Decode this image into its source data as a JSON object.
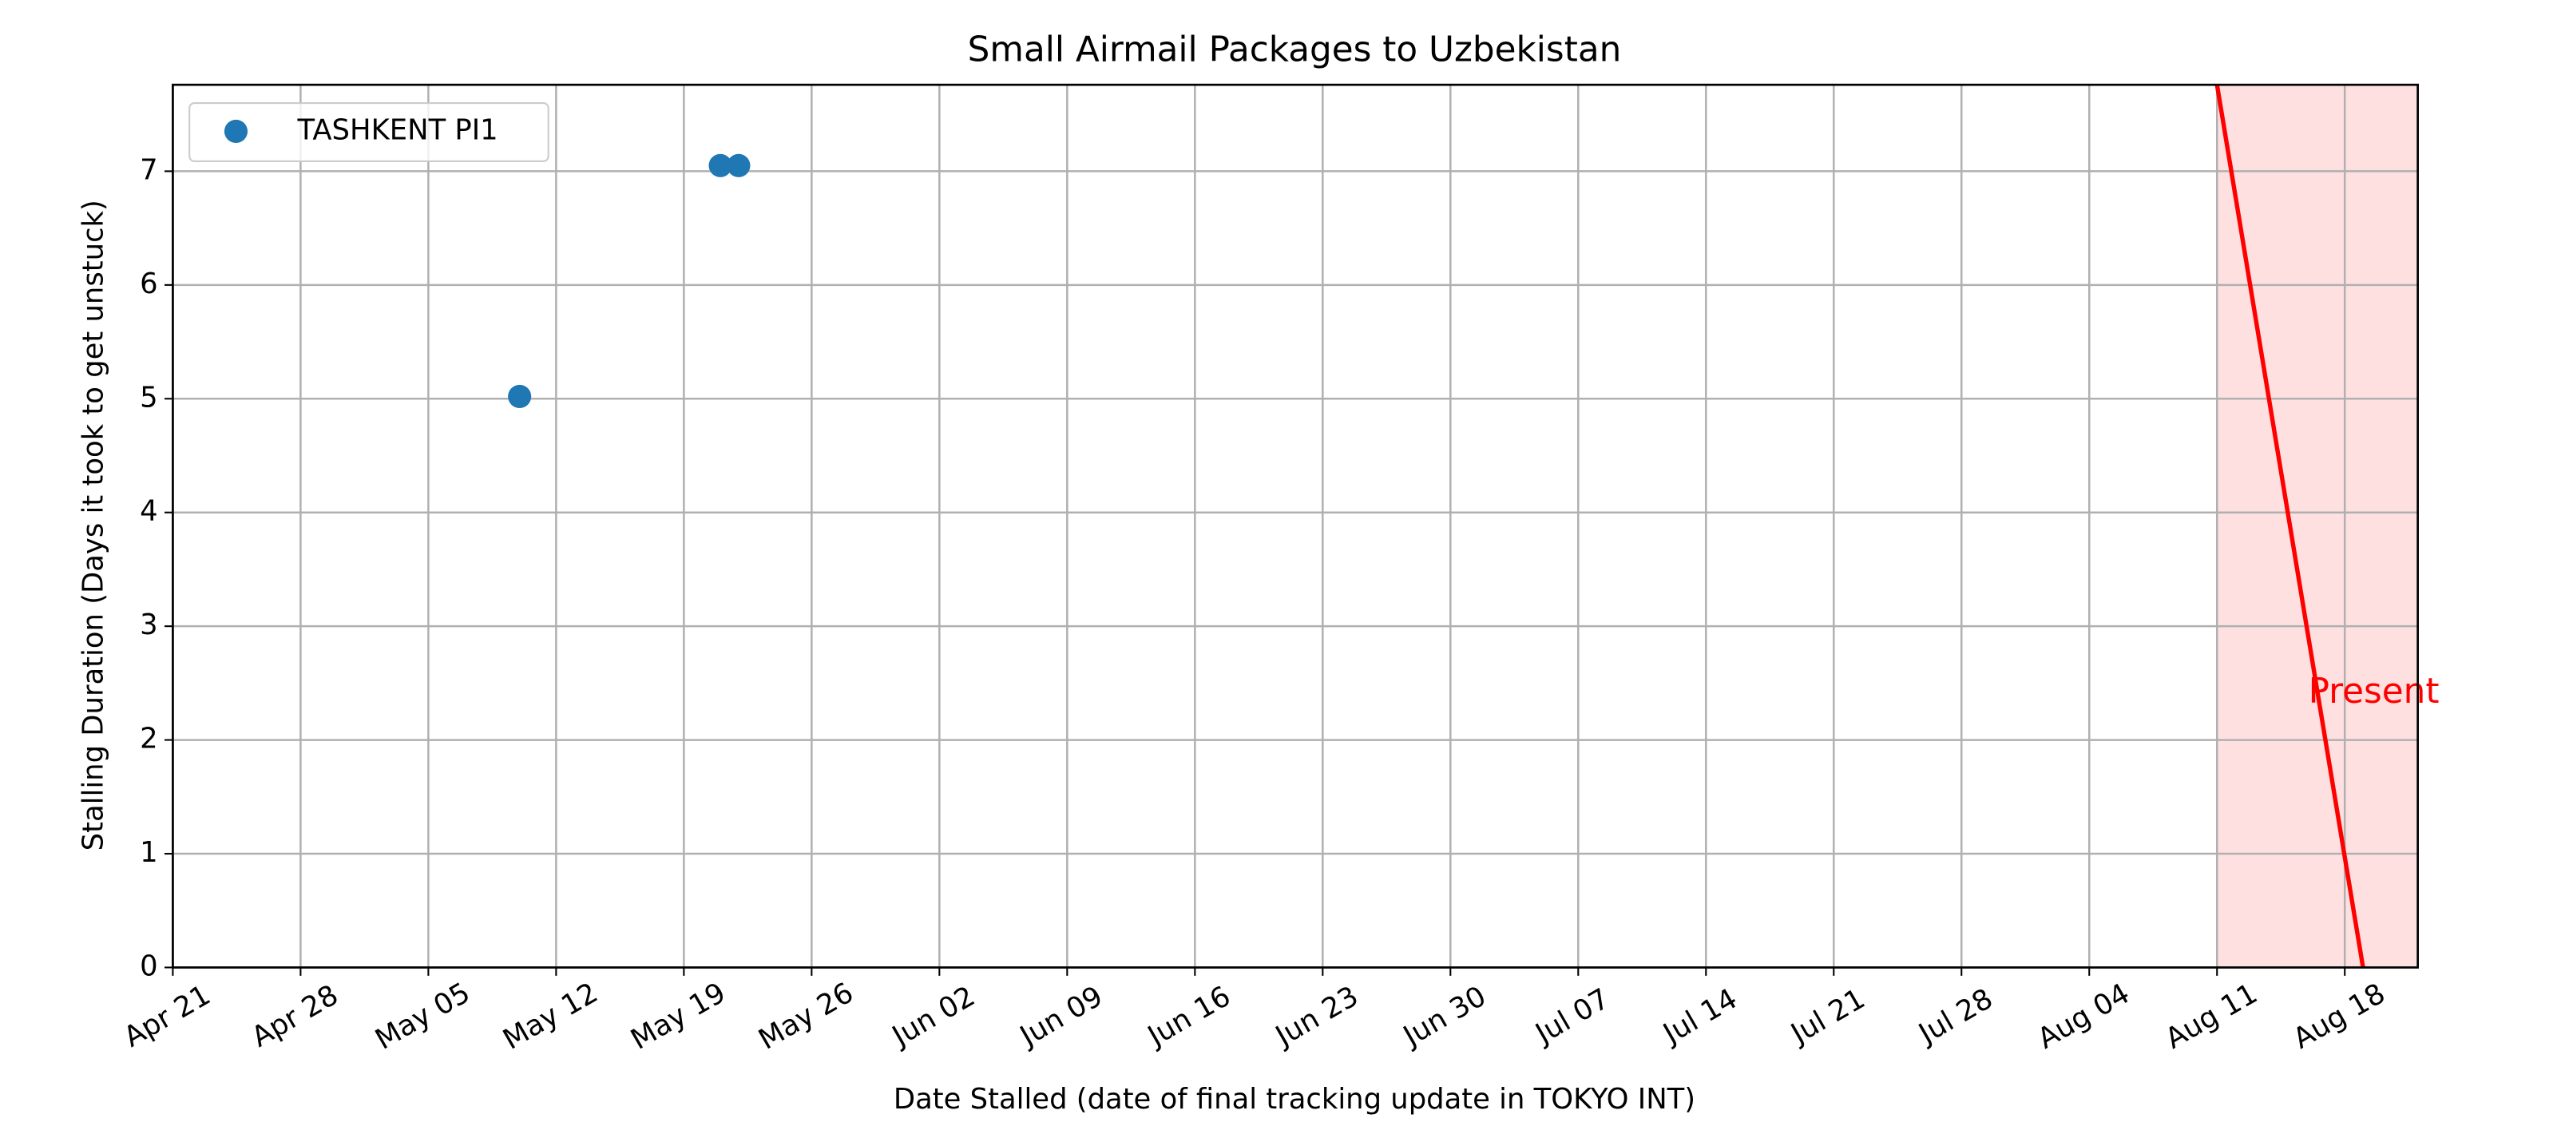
{
  "chart_data": {
    "type": "scatter",
    "title": "Small Airmail Packages to Uzbekistan",
    "x_label": "Date Stalled (date of final tracking update in TOKYO INT)",
    "y_label": "Stalling Duration (Days it took to get unstuck)",
    "series": [
      {
        "name": "TASHKENT PI1",
        "color": "#1f77b4",
        "x": [
          "May 10",
          "May 21",
          "May 22"
        ],
        "values": [
          5.02,
          7.05,
          7.05
        ]
      }
    ],
    "xlim": [
      "Apr 21",
      "Aug 22"
    ],
    "xticks": [
      "Apr 21",
      "Apr 28",
      "May 05",
      "May 12",
      "May 19",
      "May 26",
      "Jun 02",
      "Jun 09",
      "Jun 16",
      "Jun 23",
      "Jun 30",
      "Jul 07",
      "Jul 14",
      "Jul 21",
      "Jul 28",
      "Aug 04",
      "Aug 11",
      "Aug 18"
    ],
    "ylim": [
      0,
      7.76
    ],
    "yticks": [
      0,
      1,
      2,
      3,
      4,
      5,
      6,
      7
    ],
    "grid": true,
    "legend": "upper left",
    "present": {
      "label": "Present",
      "color": "#ff0000",
      "line_x": [
        "Aug 11",
        "Aug 19"
      ],
      "span": [
        "Aug 11",
        "Aug 22"
      ]
    }
  }
}
